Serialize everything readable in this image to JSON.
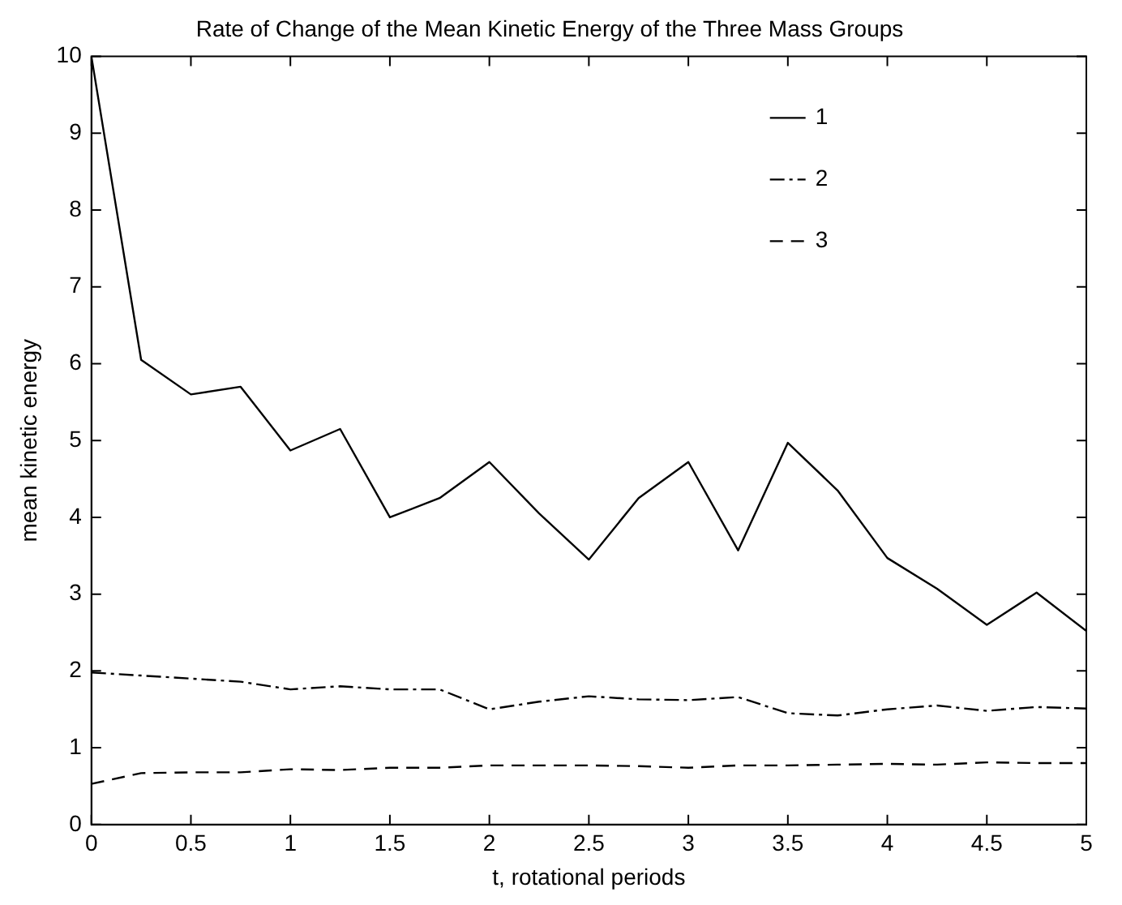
{
  "chart_data": {
    "type": "line",
    "title": "Rate of Change of the Mean Kinetic Energy of the Three Mass Groups",
    "xlabel": "t, rotational periods",
    "ylabel": "mean kinetic energy",
    "x": [
      0,
      0.25,
      0.5,
      0.75,
      1,
      1.25,
      1.5,
      1.75,
      2,
      2.25,
      2.5,
      2.75,
      3,
      3.25,
      3.5,
      3.75,
      4,
      4.25,
      4.5,
      4.75,
      5
    ],
    "series": [
      {
        "name": "1",
        "color": "#000000",
        "line_style": "solid",
        "values": [
          10,
          6.05,
          5.6,
          5.7,
          4.87,
          5.15,
          4.0,
          4.25,
          4.72,
          4.05,
          3.45,
          4.25,
          4.72,
          3.57,
          4.97,
          4.35,
          3.47,
          3.07,
          2.6,
          3.02,
          2.52
        ]
      },
      {
        "name": "2",
        "color": "#000000",
        "line_style": "dashdot",
        "values": [
          1.98,
          1.94,
          1.9,
          1.86,
          1.76,
          1.8,
          1.76,
          1.76,
          1.5,
          1.6,
          1.67,
          1.63,
          1.62,
          1.66,
          1.45,
          1.42,
          1.5,
          1.55,
          1.48,
          1.53,
          1.51
        ]
      },
      {
        "name": "3",
        "color": "#000000",
        "line_style": "dashed",
        "values": [
          0.53,
          0.67,
          0.68,
          0.68,
          0.72,
          0.71,
          0.74,
          0.74,
          0.77,
          0.77,
          0.77,
          0.76,
          0.74,
          0.77,
          0.77,
          0.78,
          0.79,
          0.78,
          0.81,
          0.8,
          0.8
        ]
      }
    ],
    "xlim": [
      0,
      5
    ],
    "xticks": [
      0,
      0.5,
      1,
      1.5,
      2,
      2.5,
      3,
      3.5,
      4,
      4.5,
      5
    ],
    "ylim": [
      0,
      10
    ],
    "yticks": [
      0,
      1,
      2,
      3,
      4,
      5,
      6,
      7,
      8,
      9,
      10
    ],
    "grid": false,
    "legend": "top right",
    "marker": "none"
  }
}
